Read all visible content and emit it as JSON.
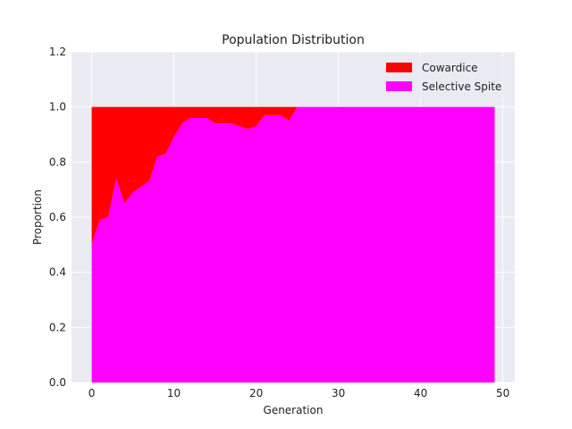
{
  "chart_data": {
    "type": "area",
    "stacked": true,
    "title": "Population Distribution",
    "xlabel": "Generation",
    "ylabel": "Proportion",
    "xlim": [
      -2.45,
      51.45
    ],
    "ylim": [
      0,
      1.2
    ],
    "xticks": [
      0,
      10,
      20,
      30,
      40,
      50
    ],
    "yticks": [
      "0.0",
      "0.2",
      "0.4",
      "0.6",
      "0.8",
      "1.0",
      "1.2"
    ],
    "grid": true,
    "legend_position": "top-right",
    "background": "#eaeaf2",
    "x": [
      0,
      1,
      2,
      3,
      4,
      5,
      6,
      7,
      8,
      9,
      10,
      11,
      12,
      13,
      14,
      15,
      16,
      17,
      18,
      19,
      20,
      21,
      22,
      23,
      24,
      25,
      26,
      27,
      28,
      29,
      30,
      31,
      32,
      33,
      34,
      35,
      36,
      37,
      38,
      39,
      40,
      41,
      42,
      43,
      44,
      45,
      46,
      47,
      48,
      49
    ],
    "series": [
      {
        "name": "Selective Spite",
        "color": "#ff00ff",
        "values": [
          0.5,
          0.59,
          0.6,
          0.74,
          0.65,
          0.69,
          0.71,
          0.73,
          0.82,
          0.83,
          0.89,
          0.94,
          0.96,
          0.96,
          0.96,
          0.94,
          0.94,
          0.94,
          0.93,
          0.92,
          0.93,
          0.97,
          0.97,
          0.97,
          0.95,
          1.0,
          1.0,
          1.0,
          1.0,
          1.0,
          1.0,
          1.0,
          1.0,
          1.0,
          1.0,
          1.0,
          1.0,
          1.0,
          1.0,
          1.0,
          1.0,
          1.0,
          1.0,
          1.0,
          1.0,
          1.0,
          1.0,
          1.0,
          1.0,
          1.0
        ]
      },
      {
        "name": "Cowardice",
        "color": "#ff0000",
        "values": [
          0.5,
          0.41,
          0.4,
          0.26,
          0.35,
          0.31,
          0.29,
          0.27,
          0.18,
          0.17,
          0.11,
          0.06,
          0.04,
          0.04,
          0.04,
          0.06,
          0.06,
          0.06,
          0.07,
          0.08,
          0.07,
          0.03,
          0.03,
          0.03,
          0.05,
          0.0,
          0.0,
          0.0,
          0.0,
          0.0,
          0.0,
          0.0,
          0.0,
          0.0,
          0.0,
          0.0,
          0.0,
          0.0,
          0.0,
          0.0,
          0.0,
          0.0,
          0.0,
          0.0,
          0.0,
          0.0,
          0.0,
          0.0,
          0.0,
          0.0
        ]
      }
    ],
    "legend": [
      "Cowardice",
      "Selective Spite"
    ]
  }
}
